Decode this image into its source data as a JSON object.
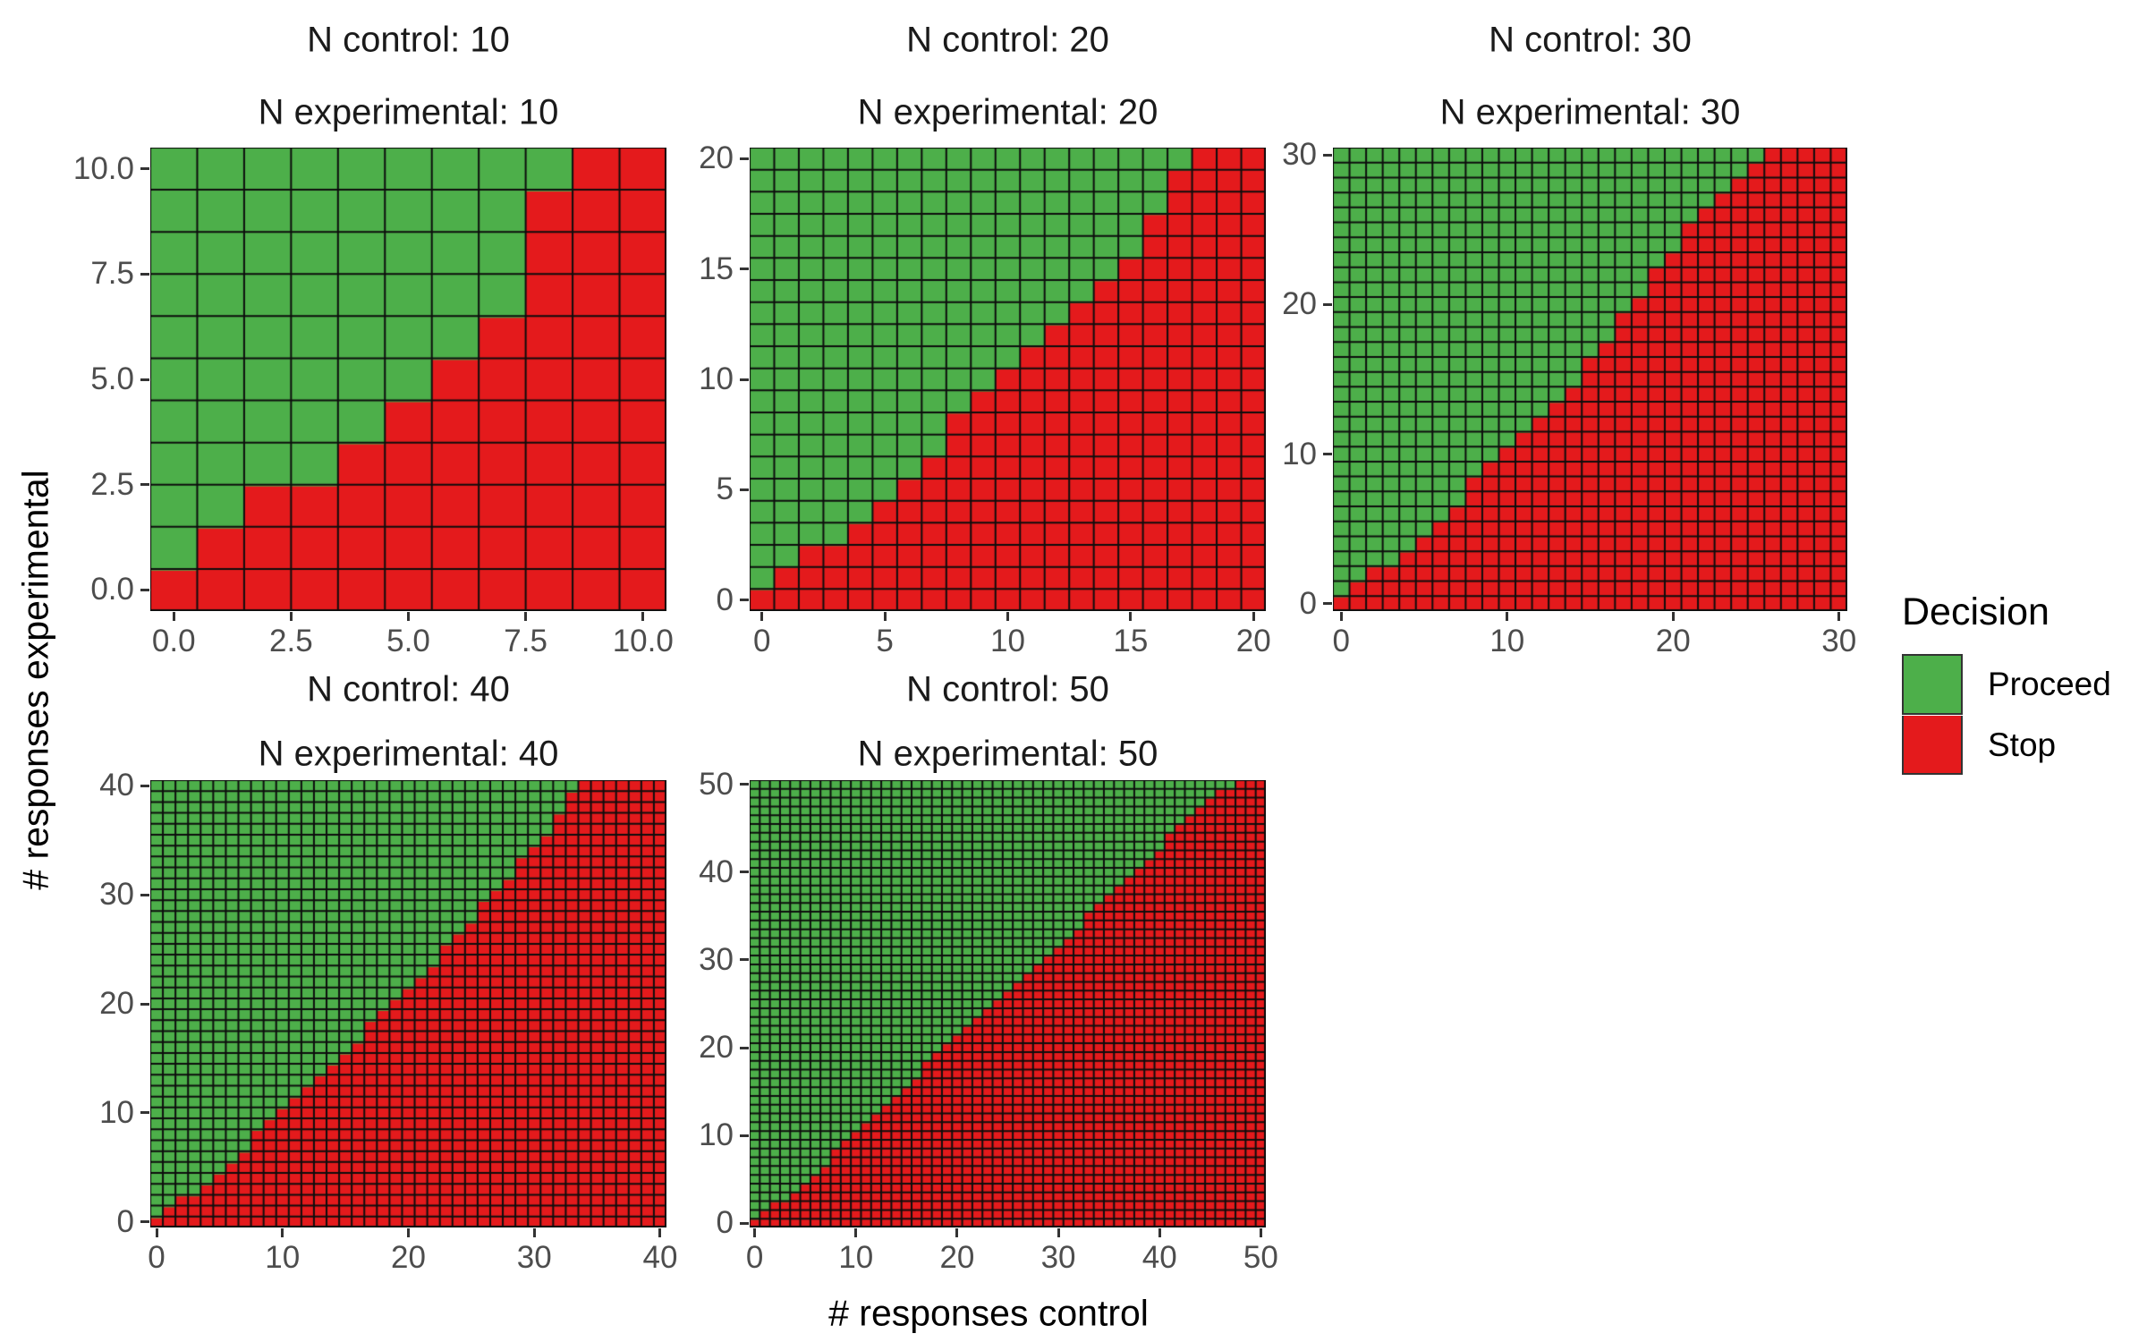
{
  "axes": {
    "x_title": "# responses control",
    "y_title": "# responses experimental"
  },
  "legend": {
    "title": "Decision",
    "items": [
      {
        "label": "Proceed",
        "color": "#4DAF4A"
      },
      {
        "label": "Stop",
        "color": "#E41A1C"
      }
    ]
  },
  "colors": {
    "proceed": "#4DAF4A",
    "stop": "#E41A1C",
    "grid": "#0d0d0d",
    "tick_text": "#4d4d4d",
    "strip_text": "#1a1a1a",
    "tick_mark": "#333333",
    "background": "#ffffff"
  },
  "chart_data": {
    "type": "heatmap",
    "title": "",
    "xlabel": "# responses control",
    "ylabel": "# responses experimental",
    "legend_position": "right",
    "grid": "per-cell black strokes",
    "cell_values": "decision: proceed (green) if y >= min_y_proceed[x], else stop (red); null = stop for whole column",
    "panels": [
      {
        "strip_top": "N control: 10",
        "strip_bottom": "N experimental: 10",
        "n_control": 10,
        "n_experimental": 10,
        "x_range": [
          0,
          10
        ],
        "y_range": [
          0,
          10
        ],
        "x_ticks": [
          "0.0",
          "2.5",
          "5.0",
          "7.5",
          "10.0"
        ],
        "x_tick_values": [
          0,
          2.5,
          5,
          7.5,
          10
        ],
        "y_ticks": [
          "0.0",
          "2.5",
          "5.0",
          "7.5",
          "10.0"
        ],
        "y_tick_values": [
          0,
          2.5,
          5,
          7.5,
          10
        ],
        "min_y_proceed": [
          1,
          2,
          3,
          3,
          4,
          5,
          6,
          7,
          10,
          null,
          null
        ]
      },
      {
        "strip_top": "N control: 20",
        "strip_bottom": "N experimental: 20",
        "n_control": 20,
        "n_experimental": 20,
        "x_range": [
          0,
          20
        ],
        "y_range": [
          0,
          20
        ],
        "x_ticks": [
          "0",
          "5",
          "10",
          "15",
          "20"
        ],
        "x_tick_values": [
          0,
          5,
          10,
          15,
          20
        ],
        "y_ticks": [
          "0",
          "5",
          "10",
          "15",
          "20"
        ],
        "y_tick_values": [
          0,
          5,
          10,
          15,
          20
        ],
        "min_y_proceed": [
          1,
          2,
          3,
          3,
          4,
          5,
          6,
          7,
          9,
          10,
          11,
          12,
          13,
          14,
          15,
          16,
          18,
          20,
          null,
          null,
          null
        ]
      },
      {
        "strip_top": "N control: 30",
        "strip_bottom": "N experimental: 30",
        "n_control": 30,
        "n_experimental": 30,
        "x_range": [
          0,
          30
        ],
        "y_range": [
          0,
          30
        ],
        "x_ticks": [
          "0",
          "10",
          "20",
          "30"
        ],
        "x_tick_values": [
          0,
          10,
          20,
          30
        ],
        "y_ticks": [
          "0",
          "10",
          "20",
          "30"
        ],
        "y_tick_values": [
          0,
          10,
          20,
          30
        ],
        "min_y_proceed": [
          1,
          2,
          3,
          3,
          4,
          5,
          6,
          7,
          9,
          10,
          11,
          12,
          13,
          14,
          15,
          17,
          18,
          20,
          21,
          23,
          24,
          26,
          27,
          28,
          29,
          30,
          null,
          null,
          null,
          null,
          null
        ]
      },
      {
        "strip_top": "N control: 40",
        "strip_bottom": "N experimental: 40",
        "n_control": 40,
        "n_experimental": 40,
        "x_range": [
          0,
          40
        ],
        "y_range": [
          0,
          40
        ],
        "x_ticks": [
          "0",
          "10",
          "20",
          "30",
          "40"
        ],
        "x_tick_values": [
          0,
          10,
          20,
          30,
          40
        ],
        "y_ticks": [
          "0",
          "10",
          "20",
          "30",
          "40"
        ],
        "y_tick_values": [
          0,
          10,
          20,
          30,
          40
        ],
        "min_y_proceed": [
          1,
          2,
          3,
          3,
          4,
          5,
          6,
          7,
          9,
          10,
          11,
          12,
          13,
          14,
          15,
          16,
          17,
          19,
          20,
          21,
          22,
          23,
          24,
          26,
          27,
          28,
          30,
          31,
          32,
          34,
          35,
          36,
          38,
          40,
          null,
          null,
          null,
          null,
          null,
          null,
          null
        ]
      },
      {
        "strip_top": "N control: 50",
        "strip_bottom": "N experimental: 50",
        "n_control": 50,
        "n_experimental": 50,
        "x_range": [
          0,
          50
        ],
        "y_range": [
          0,
          50
        ],
        "x_ticks": [
          "0",
          "10",
          "20",
          "30",
          "40",
          "50"
        ],
        "x_tick_values": [
          0,
          10,
          20,
          30,
          40,
          50
        ],
        "y_ticks": [
          "0",
          "10",
          "20",
          "30",
          "40",
          "50"
        ],
        "y_tick_values": [
          0,
          10,
          20,
          30,
          40,
          50
        ],
        "min_y_proceed": [
          1,
          2,
          3,
          3,
          4,
          5,
          6,
          7,
          9,
          10,
          11,
          12,
          13,
          14,
          15,
          16,
          17,
          19,
          20,
          21,
          22,
          23,
          24,
          25,
          26,
          27,
          28,
          29,
          30,
          31,
          32,
          33,
          34,
          36,
          37,
          38,
          39,
          40,
          41,
          42,
          43,
          45,
          46,
          47,
          48,
          49,
          50,
          50,
          null,
          null,
          null
        ]
      }
    ]
  }
}
